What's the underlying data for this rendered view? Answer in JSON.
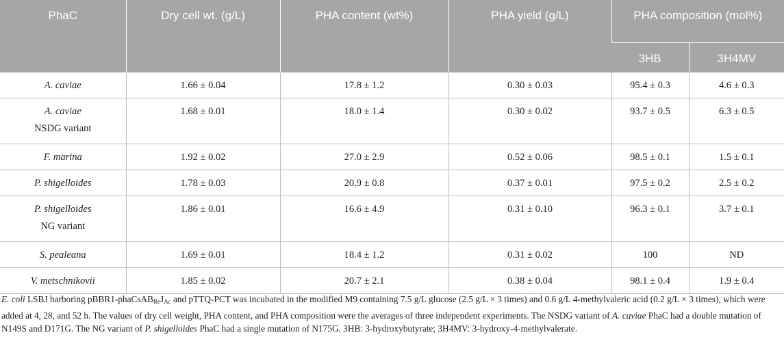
{
  "table": {
    "headers": {
      "phac": "PhaC",
      "dry_cell": "Dry cell wt. (g/L)",
      "pha_content": "PHA content (wt%)",
      "pha_yield": "PHA yield (g/L)",
      "pha_composition": "PHA composition (mol%)",
      "sub_3hb": "3HB",
      "sub_3h4mv": "3H4MV"
    },
    "rows": [
      {
        "name": "A. caviae",
        "variant": "",
        "dcw": "1.66 ± 0.04",
        "content": "17.8 ± 1.2",
        "yield": "0.30 ± 0.03",
        "hb": "95.4 ± 0.3",
        "mv": "4.6 ± 0.3"
      },
      {
        "name": "A. caviae",
        "variant": "NSDG variant",
        "dcw": "1.68 ± 0.01",
        "content": "18.0 ± 1.4",
        "yield": "0.30 ± 0.02",
        "hb": "93.7 ± 0.5",
        "mv": "6.3 ± 0.5"
      },
      {
        "name": "F. marina",
        "variant": "",
        "dcw": "1.92 ± 0.02",
        "content": "27.0 ± 2.9",
        "yield": "0.52 ± 0.06",
        "hb": "98.5 ± 0.1",
        "mv": "1.5 ± 0.1"
      },
      {
        "name": "P. shigelloides",
        "variant": "",
        "dcw": "1.78 ± 0.03",
        "content": "20.9 ± 0.8",
        "yield": "0.37 ± 0.01",
        "hb": "97.5 ± 0.2",
        "mv": "2.5 ± 0.2"
      },
      {
        "name": "P. shigelloides",
        "variant": "NG variant",
        "dcw": "1.86 ± 0.01",
        "content": "16.6 ± 4.9",
        "yield": "0.31 ± 0.10",
        "hb": "96.3 ± 0.1",
        "mv": "3.7 ± 0.1"
      },
      {
        "name": "S. pealeana",
        "variant": "",
        "dcw": "1.69 ± 0.01",
        "content": "18.4 ± 1.2",
        "yield": "0.31 ± 0.02",
        "hb": "100",
        "mv": "ND"
      },
      {
        "name": "V. metschnikovii",
        "variant": "",
        "dcw": "1.85 ± 0.02",
        "content": "20.7 ± 2.1",
        "yield": "0.38 ± 0.04",
        "hb": "98.1 ± 0.4",
        "mv": "1.9 ± 0.4"
      }
    ]
  },
  "footnote": {
    "p1_italic": "E. coli",
    "p1": " LSBJ harboring pBBR1-phaCsAB",
    "sub_re": "Re",
    "p2": "J",
    "sub_ac": "Ac",
    "p3": " and pTTQ-PCT was incubated in the modified M9 containing 7.5 g/L glucose (2.5 g/L × 3 times) and 0.6 g/L 4-methylvaleric acid (0.2 g/L × 3 times), which were added at 4, 28, and 52 h. The values of dry cell weight, PHA content, and PHA composition were the averages of three independent experiments. The NSDG variant of ",
    "p3_italic": "A. caviae",
    "p4": " PhaC had a double mutation of N149S and D171G. The NG variant of ",
    "p4_italic": "P. shigelloides",
    "p5": " PhaC had a single mutation of N175G. 3HB: 3-hydroxybutyrate; 3H4MV: 3-hydroxy-4-methylvalerate."
  }
}
